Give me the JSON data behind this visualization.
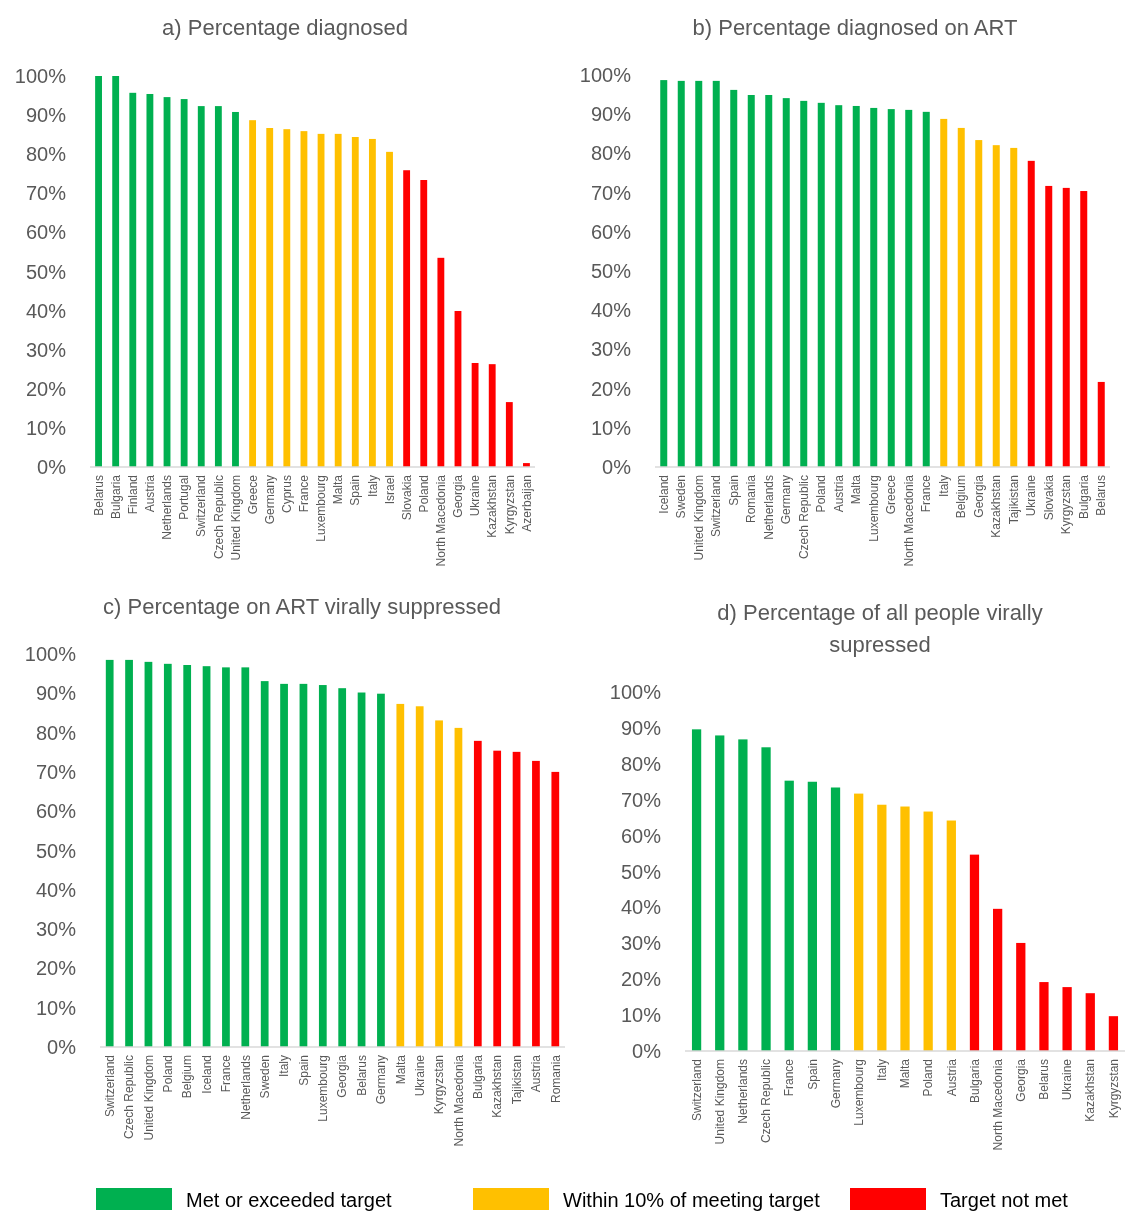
{
  "chart_data": [
    {
      "type": "bar",
      "title": "a) Percentage diagnosed",
      "categories": [
        "Belarus",
        "Bulgaria",
        "Finland",
        "Austria",
        "Netherlands",
        "Portugal",
        "Switzerland",
        "Czech Republic",
        "United Kingdom",
        "Greece",
        "Germany",
        "Cyprus",
        "France",
        "Luxembourg",
        "Malta",
        "Spain",
        "Italy",
        "Israel",
        "Slovakia",
        "Poland",
        "North Macedonia",
        "Georgia",
        "Ukraine",
        "Kazakhstan",
        "Kyrgyzstan",
        "Azerbaijan"
      ],
      "series": [
        {
          "color": "#00b050",
          "values": [
            100,
            100,
            95.7,
            95.4,
            94.6,
            94.1,
            92.3,
            92.3,
            90.8,
            null,
            null,
            null,
            null,
            null,
            null,
            null,
            null,
            null,
            null,
            null,
            null,
            null,
            null,
            null,
            null,
            null
          ]
        },
        {
          "color": "#ffc000",
          "values": [
            null,
            null,
            null,
            null,
            null,
            null,
            null,
            null,
            null,
            88.7,
            86.7,
            86.4,
            85.9,
            85.2,
            85.2,
            84.4,
            83.9,
            80.6,
            null,
            null,
            null,
            null,
            null,
            null,
            null,
            null
          ]
        },
        {
          "color": "#ff0000",
          "values": [
            null,
            null,
            null,
            null,
            null,
            null,
            null,
            null,
            null,
            null,
            null,
            null,
            null,
            null,
            null,
            null,
            null,
            null,
            75.9,
            73.4,
            53.5,
            39.9,
            26.6,
            26.3,
            16.6,
            1.0
          ]
        }
      ],
      "ylim": [
        0,
        100
      ],
      "yticks": [
        {
          "value": 0,
          "label": "0%"
        },
        {
          "value": 10,
          "label": "10%"
        },
        {
          "value": 20,
          "label": "20%"
        },
        {
          "value": 30,
          "label": "30%"
        },
        {
          "value": 40,
          "label": "40%"
        },
        {
          "value": 50,
          "label": "50%"
        },
        {
          "value": 60,
          "label": "60%"
        },
        {
          "value": 70,
          "label": "70%"
        },
        {
          "value": 80,
          "label": "80%"
        },
        {
          "value": 90,
          "label": "90%"
        },
        {
          "value": 100,
          "label": "100%"
        }
      ],
      "grid": false,
      "legend": false
    },
    {
      "type": "bar",
      "title": "b) Percentage diagnosed on ART",
      "categories": [
        "Iceland",
        "Sweden",
        "United Kingdom",
        "Switzerland",
        "Spain",
        "Romania",
        "Netherlands",
        "Germany",
        "Czech Republic",
        "Poland",
        "Austria",
        "Malta",
        "Luxembourg",
        "Greece",
        "North Macedonia",
        "France",
        "Italy",
        "Belgium",
        "Georgia",
        "Kazakhstan",
        "Tajikistan",
        "Ukraine",
        "Slovakia",
        "Kyrgyzstan",
        "Bulgaria",
        "Belarus"
      ],
      "series": [
        {
          "color": "#00b050",
          "values": [
            98.7,
            98.5,
            98.5,
            98.5,
            96.2,
            94.9,
            94.9,
            94.1,
            93.4,
            92.9,
            92.3,
            92.1,
            91.6,
            91.3,
            91.1,
            90.6,
            null,
            null,
            null,
            null,
            null,
            null,
            null,
            null,
            null,
            null
          ]
        },
        {
          "color": "#ffc000",
          "values": [
            null,
            null,
            null,
            null,
            null,
            null,
            null,
            null,
            null,
            null,
            null,
            null,
            null,
            null,
            null,
            null,
            88.8,
            86.5,
            83.4,
            82.1,
            81.4,
            null,
            null,
            null,
            null,
            null
          ]
        },
        {
          "color": "#ff0000",
          "values": [
            null,
            null,
            null,
            null,
            null,
            null,
            null,
            null,
            null,
            null,
            null,
            null,
            null,
            null,
            null,
            null,
            null,
            null,
            null,
            null,
            null,
            78.1,
            71.7,
            71.2,
            70.4,
            21.7
          ]
        }
      ],
      "ylim": [
        0,
        100
      ],
      "yticks": [
        {
          "value": 0,
          "label": "0%"
        },
        {
          "value": 10,
          "label": "10%"
        },
        {
          "value": 20,
          "label": "20%"
        },
        {
          "value": 30,
          "label": "30%"
        },
        {
          "value": 40,
          "label": "40%"
        },
        {
          "value": 50,
          "label": "50%"
        },
        {
          "value": 60,
          "label": "60%"
        },
        {
          "value": 70,
          "label": "70%"
        },
        {
          "value": 80,
          "label": "80%"
        },
        {
          "value": 90,
          "label": "90%"
        },
        {
          "value": 100,
          "label": "100%"
        }
      ],
      "grid": false,
      "legend": false
    },
    {
      "type": "bar",
      "title": "c) Percentage on ART virally suppressed",
      "categories": [
        "Switzerland",
        "Czech Republic",
        "United Kingdom",
        "Poland",
        "Belgium",
        "Iceland",
        "France",
        "Netherlands",
        "Sweden",
        "Italy",
        "Spain",
        "Luxembourg",
        "Georgia",
        "Belarus",
        "Germany",
        "Malta",
        "Ukraine",
        "Kyrgyzstan",
        "North Macedonia",
        "Bulgaria",
        "Kazakhstan",
        "Tajikistan",
        "Austria",
        "Romania"
      ],
      "series": [
        {
          "color": "#00b050",
          "values": [
            98.5,
            98.5,
            98.0,
            97.5,
            97.2,
            96.9,
            96.6,
            96.6,
            93.1,
            92.4,
            92.4,
            92.1,
            91.3,
            90.2,
            89.9,
            null,
            null,
            null,
            null,
            null,
            null,
            null,
            null,
            null
          ]
        },
        {
          "color": "#ffc000",
          "values": [
            null,
            null,
            null,
            null,
            null,
            null,
            null,
            null,
            null,
            null,
            null,
            null,
            null,
            null,
            null,
            87.3,
            86.7,
            83.1,
            81.2,
            null,
            null,
            null,
            null,
            null
          ]
        },
        {
          "color": "#ff0000",
          "values": [
            null,
            null,
            null,
            null,
            null,
            null,
            null,
            null,
            null,
            null,
            null,
            null,
            null,
            null,
            null,
            null,
            null,
            null,
            null,
            77.9,
            75.4,
            75.1,
            72.8,
            70.0
          ]
        }
      ],
      "ylim": [
        0,
        100
      ],
      "yticks": [
        {
          "value": 0,
          "label": "0%"
        },
        {
          "value": 10,
          "label": "10%"
        },
        {
          "value": 20,
          "label": "20%"
        },
        {
          "value": 30,
          "label": "30%"
        },
        {
          "value": 40,
          "label": "40%"
        },
        {
          "value": 50,
          "label": "50%"
        },
        {
          "value": 60,
          "label": "60%"
        },
        {
          "value": 70,
          "label": "70%"
        },
        {
          "value": 80,
          "label": "80%"
        },
        {
          "value": 90,
          "label": "90%"
        },
        {
          "value": 100,
          "label": "100%"
        }
      ],
      "grid": false,
      "legend": false
    },
    {
      "type": "bar",
      "title": "d) Percentage of all people virally supressed",
      "categories": [
        "Switzerland",
        "United Kingdom",
        "Netherlands",
        "Czech Republic",
        "France",
        "Spain",
        "Germany",
        "Luxembourg",
        "Italy",
        "Malta",
        "Poland",
        "Austria",
        "Bulgaria",
        "North Macedonia",
        "Georgia",
        "Belarus",
        "Ukraine",
        "Kazakhstan",
        "Kyrgyzstan"
      ],
      "series": [
        {
          "name": "Met or exceeded target",
          "color": "#00b050",
          "values": [
            89.6,
            87.9,
            86.8,
            84.6,
            75.3,
            75.0,
            73.4,
            null,
            null,
            null,
            null,
            null,
            null,
            null,
            null,
            null,
            null,
            null,
            null
          ]
        },
        {
          "name": "Within 10% of meeting target",
          "color": "#ffc000",
          "values": [
            null,
            null,
            null,
            null,
            null,
            null,
            null,
            71.7,
            68.6,
            68.1,
            66.7,
            64.2,
            null,
            null,
            null,
            null,
            null,
            null,
            null
          ]
        },
        {
          "name": "Target not met",
          "color": "#ff0000",
          "values": [
            null,
            null,
            null,
            null,
            null,
            null,
            null,
            null,
            null,
            null,
            null,
            null,
            54.7,
            39.6,
            30.1,
            19.2,
            17.8,
            16.1,
            9.7
          ]
        }
      ],
      "ylim": [
        0,
        100
      ],
      "yticks": [
        {
          "value": 0,
          "label": "0%"
        },
        {
          "value": 10,
          "label": "10%"
        },
        {
          "value": 20,
          "label": "20%"
        },
        {
          "value": 30,
          "label": "30%"
        },
        {
          "value": 40,
          "label": "40%"
        },
        {
          "value": 50,
          "label": "50%"
        },
        {
          "value": 60,
          "label": "60%"
        },
        {
          "value": 70,
          "label": "70%"
        },
        {
          "value": 80,
          "label": "80%"
        },
        {
          "value": 90,
          "label": "90%"
        },
        {
          "value": 100,
          "label": "100%"
        }
      ],
      "grid": false,
      "legend": "bottom"
    }
  ]
}
